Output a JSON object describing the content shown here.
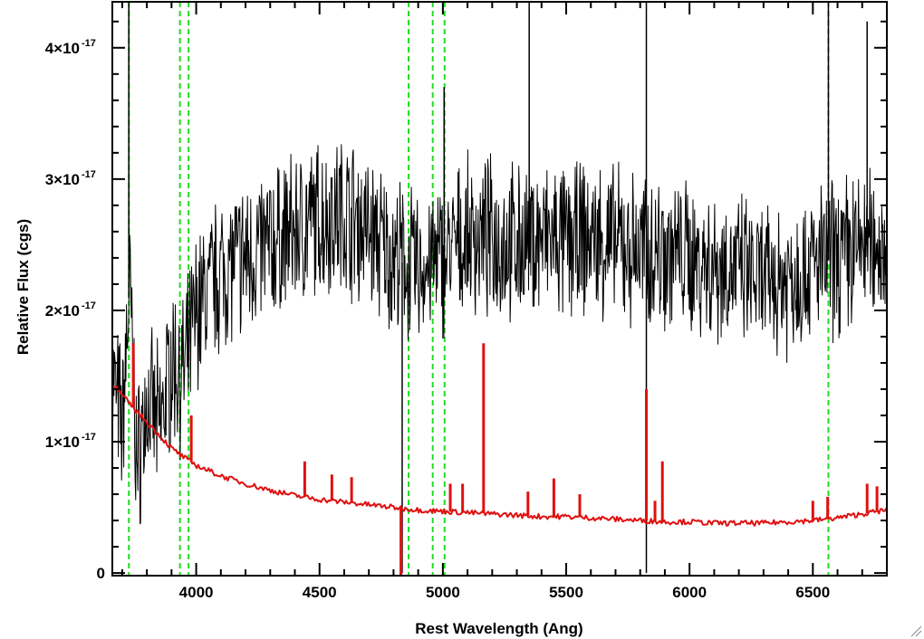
{
  "chart_data": {
    "type": "line",
    "title": "",
    "xlabel": "Rest Wavelength (Ang)",
    "ylabel": "Relative Flux (cgs)",
    "xlim": [
      3660,
      6800
    ],
    "ylim": [
      -2e-19,
      4.35e-17
    ],
    "x_ticks": [
      {
        "value": 4000,
        "label": "4000"
      },
      {
        "value": 4500,
        "label": "4500"
      },
      {
        "value": 5000,
        "label": "5000"
      },
      {
        "value": 5500,
        "label": "5500"
      },
      {
        "value": 6000,
        "label": "6000"
      },
      {
        "value": 6500,
        "label": "6500"
      }
    ],
    "y_ticks": [
      {
        "value": 0,
        "label": "0",
        "exp": ""
      },
      {
        "value": 1e-17,
        "label": "1×10",
        "exp": "-17"
      },
      {
        "value": 2e-17,
        "label": "2×10",
        "exp": "-17"
      },
      {
        "value": 3e-17,
        "label": "3×10",
        "exp": "-17"
      },
      {
        "value": 4e-17,
        "label": "4×10",
        "exp": "-17"
      }
    ],
    "reference_lines": [
      3727,
      3934,
      3969,
      4861,
      4959,
      5007,
      6563
    ],
    "series": [
      {
        "color": "#000000",
        "style": "noisy observed spectrum",
        "points": [
          [
            3660,
            1.5e-17
          ],
          [
            3700,
            1.1e-17
          ],
          [
            3730,
            2.2e-17
          ],
          [
            3760,
            8e-18
          ],
          [
            3800,
            1.3e-17
          ],
          [
            3850,
            1.1e-17
          ],
          [
            3900,
            1.6e-17
          ],
          [
            3950,
            1.5e-17
          ],
          [
            4000,
            2e-17
          ],
          [
            4100,
            2.3e-17
          ],
          [
            4200,
            2.4e-17
          ],
          [
            4300,
            2.5e-17
          ],
          [
            4400,
            2.6e-17
          ],
          [
            4500,
            2.7e-17
          ],
          [
            4600,
            2.75e-17
          ],
          [
            4700,
            2.6e-17
          ],
          [
            4800,
            2.4e-17
          ],
          [
            4900,
            2.3e-17
          ],
          [
            5000,
            2.4e-17
          ],
          [
            5100,
            2.55e-17
          ],
          [
            5200,
            2.55e-17
          ],
          [
            5300,
            2.5e-17
          ],
          [
            5400,
            2.55e-17
          ],
          [
            5500,
            2.5e-17
          ],
          [
            5600,
            2.55e-17
          ],
          [
            5700,
            2.5e-17
          ],
          [
            5800,
            2.45e-17
          ],
          [
            5900,
            2.45e-17
          ],
          [
            6000,
            2.4e-17
          ],
          [
            6100,
            2.35e-17
          ],
          [
            6200,
            2.3e-17
          ],
          [
            6300,
            2.2e-17
          ],
          [
            6400,
            2.25e-17
          ],
          [
            6500,
            2.35e-17
          ],
          [
            6600,
            2.4e-17
          ],
          [
            6700,
            2.5e-17
          ],
          [
            6800,
            2.5e-17
          ]
        ],
        "spikes": [
          {
            "x": 3727,
            "y": 4.4e-17
          },
          {
            "x": 5005,
            "y": 3.7e-17
          },
          {
            "x": 5350,
            "y": 4.4e-17
          },
          {
            "x": 5825,
            "y": 4.4e-17
          },
          {
            "x": 6563,
            "y": 4.4e-17
          },
          {
            "x": 6720,
            "y": 4.2e-17
          },
          {
            "x": 4835,
            "y": 0.0
          },
          {
            "x": 5825,
            "y": 0.0
          }
        ]
      },
      {
        "color": "#e01010",
        "style": "model continuum",
        "points": [
          [
            3660,
            1.45e-17
          ],
          [
            3700,
            1.35e-17
          ],
          [
            3750,
            1.25e-17
          ],
          [
            3800,
            1.15e-17
          ],
          [
            3850,
            1.05e-17
          ],
          [
            3900,
            9.5e-18
          ],
          [
            3950,
            8.8e-18
          ],
          [
            4000,
            8.2e-18
          ],
          [
            4100,
            7.4e-18
          ],
          [
            4200,
            6.8e-18
          ],
          [
            4300,
            6.3e-18
          ],
          [
            4400,
            5.9e-18
          ],
          [
            4500,
            5.6e-18
          ],
          [
            4600,
            5.4e-18
          ],
          [
            4700,
            5.2e-18
          ],
          [
            4800,
            5e-18
          ],
          [
            4900,
            4.8e-18
          ],
          [
            5000,
            4.7e-18
          ],
          [
            5100,
            4.6e-18
          ],
          [
            5200,
            4.5e-18
          ],
          [
            5300,
            4.4e-18
          ],
          [
            5400,
            4.3e-18
          ],
          [
            5500,
            4.3e-18
          ],
          [
            5600,
            4.2e-18
          ],
          [
            5700,
            4.1e-18
          ],
          [
            5800,
            4e-18
          ],
          [
            5900,
            3.9e-18
          ],
          [
            6000,
            3.9e-18
          ],
          [
            6100,
            3.8e-18
          ],
          [
            6200,
            3.8e-18
          ],
          [
            6300,
            3.8e-18
          ],
          [
            6400,
            3.9e-18
          ],
          [
            6500,
            4e-18
          ],
          [
            6600,
            4.2e-18
          ],
          [
            6700,
            4.5e-18
          ],
          [
            6800,
            4.8e-18
          ]
        ],
        "spikes": [
          {
            "x": 3745,
            "y": 1.75e-17
          },
          {
            "x": 3980,
            "y": 1.2e-17
          },
          {
            "x": 4440,
            "y": 8.5e-18
          },
          {
            "x": 4550,
            "y": 7.5e-18
          },
          {
            "x": 4630,
            "y": 7.3e-18
          },
          {
            "x": 4830,
            "y": -2e-19
          },
          {
            "x": 5030,
            "y": 6.8e-18
          },
          {
            "x": 5080,
            "y": 6.8e-18
          },
          {
            "x": 5165,
            "y": 1.75e-17
          },
          {
            "x": 5345,
            "y": 6.2e-18
          },
          {
            "x": 5450,
            "y": 7.2e-18
          },
          {
            "x": 5555,
            "y": 6e-18
          },
          {
            "x": 5825,
            "y": 1.4e-17
          },
          {
            "x": 5860,
            "y": 5.5e-18
          },
          {
            "x": 5890,
            "y": 8.5e-18
          },
          {
            "x": 6500,
            "y": 5.5e-18
          },
          {
            "x": 6560,
            "y": 5.8e-18
          },
          {
            "x": 6720,
            "y": 6.8e-18
          },
          {
            "x": 6760,
            "y": 6.6e-18
          }
        ]
      }
    ],
    "grid": false,
    "legend": "none"
  }
}
